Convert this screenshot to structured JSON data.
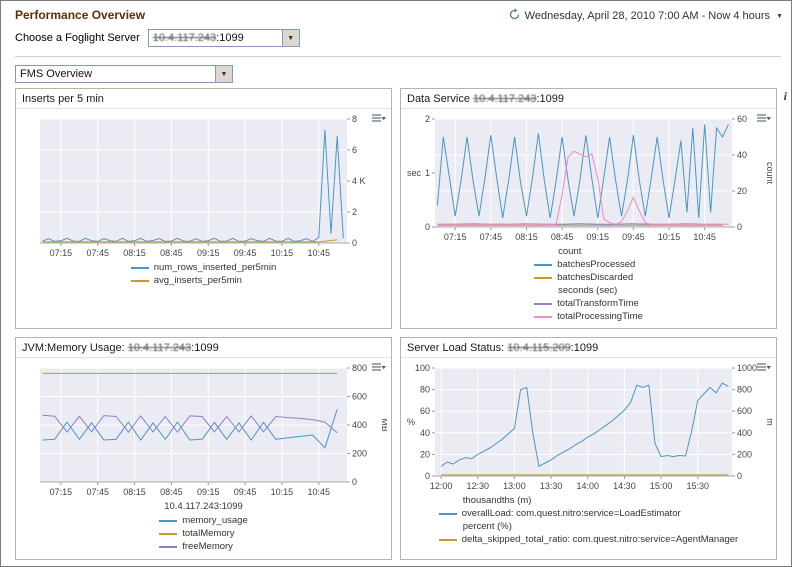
{
  "page": {
    "title": "Performance Overview",
    "time_range": "Wednesday, April 28, 2010 7:00 AM - Now 4 hours",
    "server_label": "Choose a Foglight Server",
    "server_select": {
      "ip": "10.4.117.243",
      "port": ":1099"
    },
    "view_select": "FMS Overview"
  },
  "icons": {
    "dropdown_arrow": "▼",
    "info": "i"
  },
  "panels": {
    "inserts": {
      "title_prefix": "Inserts per 5 min",
      "ip": "",
      "port": ""
    },
    "data_service": {
      "title_prefix": "Data Service ",
      "ip": "10.4.117.243",
      "port": ":1099"
    },
    "jvm": {
      "title_prefix": "JVM:Memory Usage: ",
      "ip": "10.4.117.243",
      "port": ":1099"
    },
    "load": {
      "title_prefix": "Server Load Status: ",
      "ip": "10.4.115.209",
      "port": ":1099"
    }
  },
  "chart_data": {
    "inserts": {
      "type": "line",
      "title": "Inserts per 5 min",
      "xmin": 418,
      "xmax": 668,
      "xticks": [
        {
          "v": 435,
          "label": "07:15"
        },
        {
          "v": 465,
          "label": "07:45"
        },
        {
          "v": 495,
          "label": "08:15"
        },
        {
          "v": 525,
          "label": "08:45"
        },
        {
          "v": 555,
          "label": "09:15"
        },
        {
          "v": 585,
          "label": "09:45"
        },
        {
          "v": 615,
          "label": "10:15"
        },
        {
          "v": 645,
          "label": "10:45"
        }
      ],
      "axisR": {
        "min": 0,
        "max": 8,
        "title": null,
        "ticks": [
          {
            "v": 0,
            "label": "0"
          },
          {
            "v": 2,
            "label": "2"
          },
          {
            "v": 4,
            "label": "4 K"
          },
          {
            "v": 6,
            "label": "6"
          },
          {
            "v": 8,
            "label": "8"
          }
        ]
      },
      "series": [
        {
          "name": "num_rows_inserted_per5min",
          "color": "#4a96c8",
          "axis": "right",
          "x0": 420,
          "dx": 5,
          "values": [
            0.12,
            0.28,
            0.1,
            0.15,
            0.3,
            0.12,
            0.1,
            0.3,
            0.14,
            0.1,
            0.28,
            0.15,
            0.1,
            0.3,
            0.1,
            0.14,
            0.3,
            0.1,
            0.16,
            0.28,
            0.1,
            0.12,
            0.3,
            0.12,
            0.1,
            0.28,
            0.1,
            0.15,
            0.3,
            0.1,
            0.12,
            0.3,
            0.1,
            0.12,
            0.28,
            0.15,
            0.1,
            0.3,
            0.12,
            0.1,
            0.3,
            0.1,
            0.15,
            0.28,
            0.1,
            0.35,
            7.3,
            0.6,
            6.9,
            0.3
          ]
        },
        {
          "name": "avg_inserts_per5min",
          "color": "#c49a2a",
          "axis": "right",
          "x0": 420,
          "dx": 15,
          "values": [
            0.07,
            0.07,
            0.07,
            0.07,
            0.07,
            0.07,
            0.07,
            0.07,
            0.07,
            0.07,
            0.07,
            0.07,
            0.07,
            0.07,
            0.07,
            0.07,
            0.2
          ]
        }
      ],
      "legend_groups": [
        {
          "header": null,
          "items": [
            {
              "label": "num_rows_inserted_per5min",
              "color": "#4a96c8"
            },
            {
              "label": "avg_inserts_per5min",
              "color": "#c49a2a"
            }
          ]
        }
      ]
    },
    "data_service": {
      "type": "line",
      "title": "Data Service 10.4.117.243:1099",
      "xmin": 418,
      "xmax": 668,
      "xticks": [
        {
          "v": 435,
          "label": "07:15"
        },
        {
          "v": 465,
          "label": "07:45"
        },
        {
          "v": 495,
          "label": "08:15"
        },
        {
          "v": 525,
          "label": "08:45"
        },
        {
          "v": 555,
          "label": "09:15"
        },
        {
          "v": 585,
          "label": "09:45"
        },
        {
          "v": 615,
          "label": "10:15"
        },
        {
          "v": 645,
          "label": "10:45"
        }
      ],
      "axisL": {
        "min": 0,
        "max": 2,
        "title": "sec",
        "ticks": [
          {
            "v": 0,
            "label": "0"
          },
          {
            "v": 1,
            "label": "1"
          },
          {
            "v": 2,
            "label": "2"
          }
        ]
      },
      "axisR": {
        "min": 0,
        "max": 60,
        "title": "count",
        "ticks": [
          {
            "v": 0,
            "label": "0"
          },
          {
            "v": 20,
            "label": "20"
          },
          {
            "v": 40,
            "label": "40"
          },
          {
            "v": 60,
            "label": "60"
          }
        ]
      },
      "series": [
        {
          "name": "batchesProcessed",
          "color": "#4a96c8",
          "axis": "right",
          "x0": 420,
          "dx": 5,
          "values": [
            12,
            50,
            28,
            6,
            26,
            50,
            26,
            6,
            27,
            51,
            27,
            5,
            26,
            50,
            25,
            6,
            27,
            52,
            26,
            5,
            26,
            50,
            26,
            6,
            26,
            51,
            27,
            5,
            27,
            50,
            26,
            6,
            26,
            51,
            26,
            6,
            27,
            50,
            26,
            5,
            26,
            48,
            8,
            55,
            5,
            57,
            8,
            55,
            50,
            57
          ]
        },
        {
          "name": "batchesDiscarded",
          "color": "#c49a2a",
          "axis": "right",
          "x0": 420,
          "dx": 15,
          "values": [
            1,
            1,
            1,
            1,
            1,
            1,
            1,
            1,
            1,
            1,
            1,
            1,
            1,
            1,
            1,
            1,
            1
          ]
        },
        {
          "name": "totalTransformTime",
          "color": "#8a7fc9",
          "axis": "left",
          "x0": 420,
          "dx": 15,
          "values": [
            0.05,
            0.05,
            0.06,
            0.05,
            0.05,
            0.06,
            0.05,
            0.05,
            0.06,
            0.05,
            0.05,
            0.06,
            0.05,
            0.05,
            0.06,
            0.05,
            0.05
          ]
        },
        {
          "name": "totalProcessingTime",
          "color": "#ef8bbe",
          "axis": "left",
          "x0": 420,
          "dx": 5,
          "values": [
            0.05,
            0.05,
            0.05,
            0.05,
            0.05,
            0.05,
            0.05,
            0.05,
            0.05,
            0.05,
            0.05,
            0.05,
            0.05,
            0.05,
            0.05,
            0.05,
            0.05,
            0.05,
            0.05,
            0.05,
            0.05,
            0.6,
            1.3,
            1.4,
            1.35,
            1.3,
            1.35,
            0.9,
            0.15,
            0.08,
            0.05,
            0.1,
            0.3,
            0.55,
            0.3,
            0.08,
            0.05,
            0.05,
            0.05,
            0.05,
            0.05,
            0.05,
            0.05,
            0.05,
            0.05,
            0.05,
            0.05,
            0.05,
            0.05,
            0.05
          ]
        }
      ],
      "legend_groups": [
        {
          "header": "count",
          "items": [
            {
              "label": "batchesProcessed",
              "color": "#4a96c8"
            },
            {
              "label": "batchesDiscarded",
              "color": "#c49a2a"
            }
          ]
        },
        {
          "header": "seconds (sec)",
          "items": [
            {
              "label": "totalTransformTime",
              "color": "#8a7fc9"
            },
            {
              "label": "totalProcessingTime",
              "color": "#ef8bbe"
            }
          ]
        }
      ]
    },
    "jvm": {
      "type": "line",
      "title": "JVM:Memory Usage: 10.4.117.243:1099",
      "xlabel": "10.4.117.243:1099",
      "xmin": 418,
      "xmax": 668,
      "xticks": [
        {
          "v": 435,
          "label": "07:15"
        },
        {
          "v": 465,
          "label": "07:45"
        },
        {
          "v": 495,
          "label": "08:15"
        },
        {
          "v": 525,
          "label": "08:45"
        },
        {
          "v": 555,
          "label": "09:15"
        },
        {
          "v": 585,
          "label": "09:45"
        },
        {
          "v": 615,
          "label": "10:15"
        },
        {
          "v": 645,
          "label": "10:45"
        }
      ],
      "axisR": {
        "min": 0,
        "max": 800,
        "title": "MB",
        "ticks": [
          {
            "v": 0,
            "label": "0"
          },
          {
            "v": 200,
            "label": "200"
          },
          {
            "v": 400,
            "label": "400"
          },
          {
            "v": 600,
            "label": "600"
          },
          {
            "v": 800,
            "label": "800"
          }
        ]
      },
      "series": [
        {
          "name": "memory_usage",
          "color": "#4a96c8",
          "axis": "right",
          "x0": 420,
          "dx": 10,
          "values": [
            295,
            300,
            420,
            300,
            415,
            295,
            300,
            420,
            295,
            415,
            300,
            420,
            295,
            300,
            418,
            300,
            415,
            295,
            418,
            300,
            310,
            320,
            330,
            240,
            510
          ]
        },
        {
          "name": "totalMemory",
          "color": "#c49a2a",
          "axis": "right",
          "x0": 420,
          "dx": 30,
          "values": [
            762,
            762,
            762,
            762,
            762,
            762,
            762,
            762,
            762
          ]
        },
        {
          "name": "freeMemory",
          "color": "#8a7fc9",
          "axis": "right",
          "x0": 420,
          "dx": 10,
          "values": [
            468,
            462,
            350,
            462,
            352,
            466,
            460,
            350,
            464,
            352,
            460,
            350,
            464,
            460,
            352,
            460,
            352,
            464,
            352,
            460,
            452,
            446,
            438,
            420,
            345
          ]
        }
      ],
      "legend_groups": [
        {
          "header": null,
          "items": [
            {
              "label": "memory_usage",
              "color": "#4a96c8"
            },
            {
              "label": "totalMemory",
              "color": "#c49a2a"
            },
            {
              "label": "freeMemory",
              "color": "#8a7fc9"
            }
          ]
        }
      ]
    },
    "load": {
      "type": "line",
      "title": "Server Load Status: 10.4.115.209:1099",
      "xmin": 715,
      "xmax": 958,
      "xticks": [
        {
          "v": 720,
          "label": "12:00"
        },
        {
          "v": 750,
          "label": "12:30"
        },
        {
          "v": 780,
          "label": "13:00"
        },
        {
          "v": 810,
          "label": "13:30"
        },
        {
          "v": 840,
          "label": "14:00"
        },
        {
          "v": 870,
          "label": "14:30"
        },
        {
          "v": 900,
          "label": "15:00"
        },
        {
          "v": 930,
          "label": "15:30"
        }
      ],
      "axisL": {
        "min": 0,
        "max": 100,
        "title": "%",
        "ticks": [
          {
            "v": 0,
            "label": "0"
          },
          {
            "v": 20,
            "label": "20"
          },
          {
            "v": 40,
            "label": "40"
          },
          {
            "v": 60,
            "label": "60"
          },
          {
            "v": 80,
            "label": "80"
          },
          {
            "v": 100,
            "label": "100"
          }
        ]
      },
      "axisR": {
        "min": 0,
        "max": 1000,
        "title": "m",
        "ticks": [
          {
            "v": 0,
            "label": "0"
          },
          {
            "v": 200,
            "label": "200"
          },
          {
            "v": 400,
            "label": "400"
          },
          {
            "v": 600,
            "label": "600"
          },
          {
            "v": 800,
            "label": "800"
          },
          {
            "v": 1000,
            "label": "1000"
          }
        ]
      },
      "series": [
        {
          "name": "overallLoad",
          "color": "#4a96c8",
          "axis": "right",
          "x0": 720,
          "dx": 5,
          "values": [
            90,
            130,
            110,
            150,
            170,
            160,
            200,
            230,
            260,
            300,
            340,
            390,
            440,
            800,
            820,
            400,
            90,
            120,
            150,
            190,
            220,
            250,
            290,
            320,
            360,
            390,
            430,
            470,
            510,
            560,
            610,
            680,
            840,
            820,
            840,
            300,
            180,
            190,
            180,
            190,
            185,
            420,
            700,
            760,
            820,
            770,
            860,
            830
          ]
        },
        {
          "name": "delta_skipped_total_ratio",
          "color": "#c49a2a",
          "axis": "left",
          "x0": 720,
          "dx": 47,
          "values": [
            1,
            1,
            1,
            1,
            1,
            1
          ]
        }
      ],
      "legend_groups": [
        {
          "header": "thousandths (m)",
          "items": [
            {
              "label": "overallLoad: com.quest.nitro:service=LoadEstimator",
              "color": "#4a96c8"
            }
          ]
        },
        {
          "header": "percent (%)",
          "items": [
            {
              "label": "delta_skipped_total_ratio: com.quest.nitro:service=AgentManager",
              "color": "#c49a2a"
            }
          ]
        }
      ]
    }
  }
}
